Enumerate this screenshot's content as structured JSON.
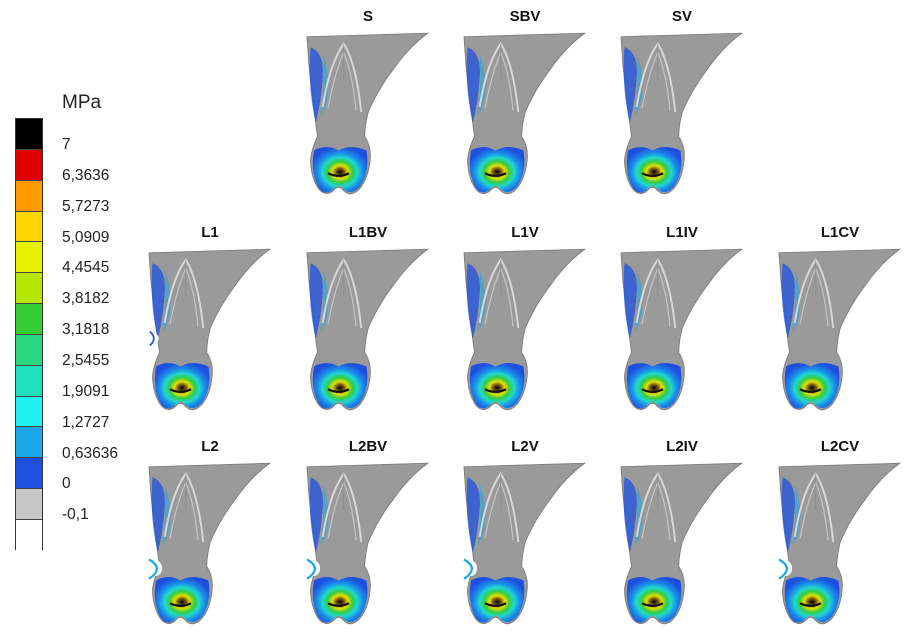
{
  "legend": {
    "unit": "MPa",
    "levels": [
      {
        "label": "7",
        "color": "#000000"
      },
      {
        "label": "6,3636",
        "color": "#e00000"
      },
      {
        "label": "5,7273",
        "color": "#ff9a00"
      },
      {
        "label": "5,0909",
        "color": "#ffd500"
      },
      {
        "label": "4,4545",
        "color": "#e8f000"
      },
      {
        "label": "3,8182",
        "color": "#b5e600"
      },
      {
        "label": "3,1818",
        "color": "#33cc33"
      },
      {
        "label": "2,5455",
        "color": "#2ad680"
      },
      {
        "label": "1,9091",
        "color": "#20e0c0"
      },
      {
        "label": "1,2727",
        "color": "#20f0f0"
      },
      {
        "label": "0,63636",
        "color": "#1aa8e8"
      },
      {
        "label": "0",
        "color": "#1e50e0"
      },
      {
        "label": "-0,1",
        "color": "#c8c8c8"
      },
      {
        "label": "",
        "color": "#ffffff"
      }
    ]
  },
  "rows": [
    {
      "models": [
        {
          "label": "S",
          "notch": "none"
        },
        {
          "label": "SBV",
          "notch": "none"
        },
        {
          "label": "SV",
          "notch": "none"
        }
      ]
    },
    {
      "models": [
        {
          "label": "L1",
          "notch": "small"
        },
        {
          "label": "L1BV",
          "notch": "none"
        },
        {
          "label": "L1V",
          "notch": "none"
        },
        {
          "label": "L1IV",
          "notch": "none"
        },
        {
          "label": "L1CV",
          "notch": "none"
        }
      ]
    },
    {
      "models": [
        {
          "label": "L2",
          "notch": "large"
        },
        {
          "label": "L2BV",
          "notch": "large"
        },
        {
          "label": "L2V",
          "notch": "large"
        },
        {
          "label": "L2IV",
          "notch": "none"
        },
        {
          "label": "L2CV",
          "notch": "large"
        }
      ]
    }
  ]
}
